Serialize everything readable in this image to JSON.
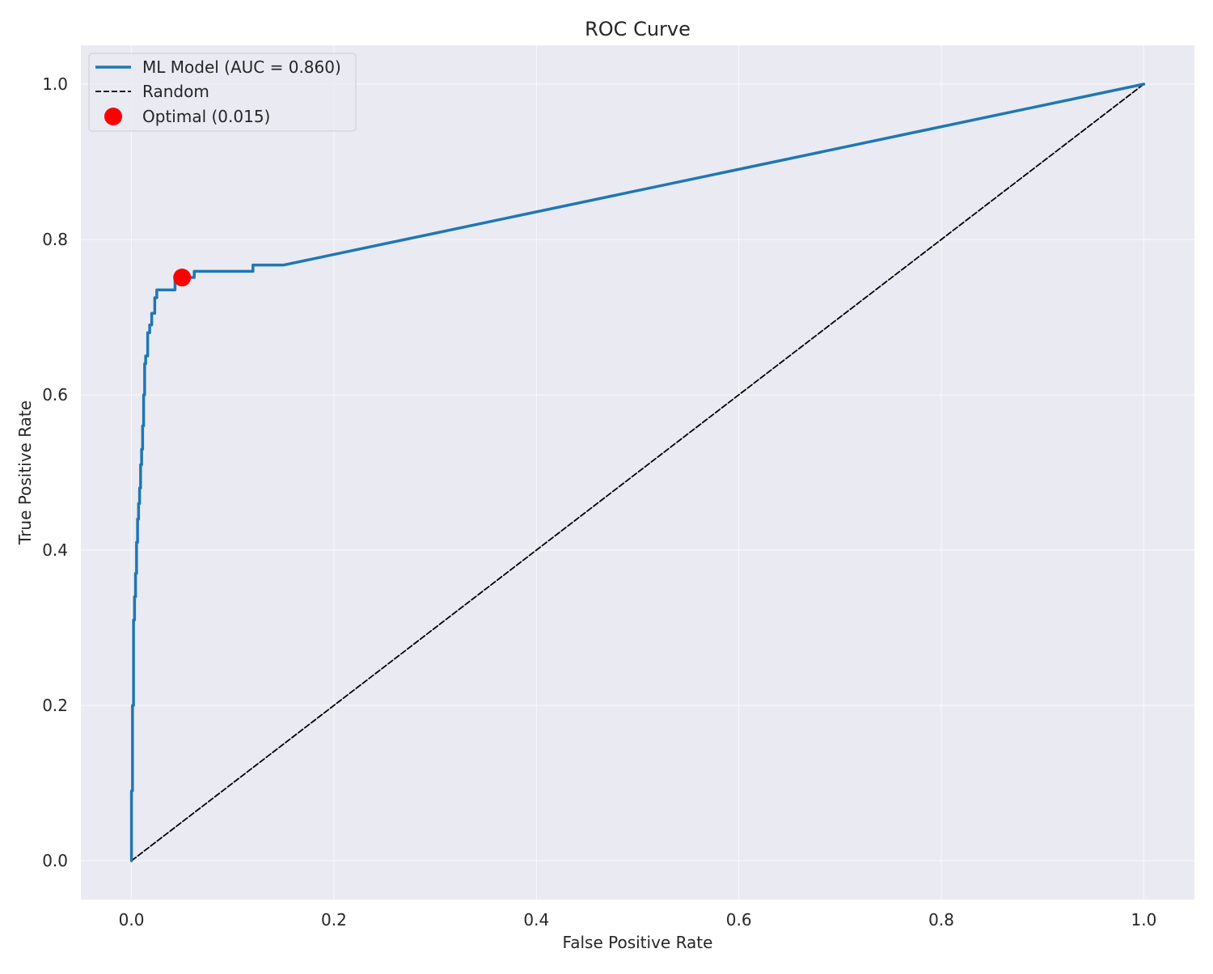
{
  "chart_data": {
    "type": "line",
    "title": "ROC Curve",
    "xlabel": "False Positive Rate",
    "ylabel": "True Positive Rate",
    "xlim": [
      -0.05,
      1.05
    ],
    "ylim": [
      -0.05,
      1.05
    ],
    "xticks": [
      0.0,
      0.2,
      0.4,
      0.6,
      0.8,
      1.0
    ],
    "yticks": [
      0.0,
      0.2,
      0.4,
      0.6,
      0.8,
      1.0
    ],
    "xtick_labels": [
      "0.0",
      "0.2",
      "0.4",
      "0.6",
      "0.8",
      "1.0"
    ],
    "ytick_labels": [
      "0.0",
      "0.2",
      "0.4",
      "0.6",
      "0.8",
      "1.0"
    ],
    "grid": true,
    "legend_position": "top-left",
    "background_color": "#eaeaf2",
    "series": [
      {
        "name": "ML Model (AUC = 0.860)",
        "kind": "line",
        "color": "#1f77b4",
        "style": "solid",
        "x": [
          0.0,
          0.0,
          0.001,
          0.001,
          0.002,
          0.002,
          0.003,
          0.003,
          0.004,
          0.004,
          0.005,
          0.005,
          0.006,
          0.006,
          0.007,
          0.007,
          0.008,
          0.008,
          0.009,
          0.009,
          0.01,
          0.01,
          0.011,
          0.011,
          0.012,
          0.012,
          0.013,
          0.013,
          0.014,
          0.014,
          0.016,
          0.016,
          0.018,
          0.018,
          0.02,
          0.02,
          0.023,
          0.023,
          0.025,
          0.025,
          0.03,
          0.043,
          0.043,
          0.05,
          0.058,
          0.062,
          0.062,
          0.12,
          0.12,
          0.15,
          1.0
        ],
        "y": [
          0.0,
          0.09,
          0.09,
          0.2,
          0.2,
          0.31,
          0.31,
          0.34,
          0.34,
          0.37,
          0.37,
          0.41,
          0.41,
          0.44,
          0.44,
          0.46,
          0.46,
          0.48,
          0.48,
          0.51,
          0.51,
          0.53,
          0.53,
          0.56,
          0.56,
          0.6,
          0.6,
          0.64,
          0.64,
          0.65,
          0.65,
          0.68,
          0.68,
          0.69,
          0.69,
          0.705,
          0.705,
          0.725,
          0.725,
          0.735,
          0.735,
          0.735,
          0.75,
          0.751,
          0.751,
          0.751,
          0.759,
          0.759,
          0.767,
          0.767,
          1.0
        ]
      },
      {
        "name": "Random",
        "kind": "line",
        "color": "#000000",
        "style": "dashed",
        "x": [
          0,
          1
        ],
        "y": [
          0,
          1
        ]
      },
      {
        "name": "Optimal (0.015)",
        "kind": "point",
        "color": "#ff0000",
        "x": [
          0.05
        ],
        "y": [
          0.751
        ]
      }
    ]
  }
}
